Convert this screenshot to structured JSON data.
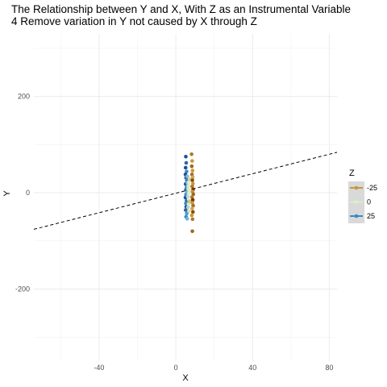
{
  "chart_data": {
    "type": "scatter",
    "title": "The Relationship between Y and X, With Z as an Instrumental Variable",
    "subtitle": "4 Remove variation in Y not caused by X through Z",
    "xlabel": "X",
    "ylabel": "Y",
    "xlim": [
      -74,
      84
    ],
    "ylim": [
      -350,
      330
    ],
    "x_ticks": [
      -40,
      0,
      40,
      80
    ],
    "y_ticks": [
      -200,
      0,
      200
    ],
    "x_tick_labels": [
      "-40",
      "0",
      "40",
      "80"
    ],
    "y_tick_labels": [
      "-200",
      "0",
      "200"
    ],
    "grid": true,
    "legend": {
      "title": "Z",
      "position": "right",
      "entries": [
        {
          "label": "-25",
          "color": "#c39a3a"
        },
        {
          "label": "0",
          "color": "#d9f0c8"
        },
        {
          "label": "25",
          "color": "#3a8ac6"
        }
      ]
    },
    "fit_line": {
      "style": "dashed",
      "color": "#000000",
      "x": [
        -74,
        84
      ],
      "y": [
        -76,
        84
      ]
    },
    "points": [
      {
        "x": 5.2,
        "y": 75,
        "color": "#1f4e9a"
      },
      {
        "x": 5.4,
        "y": 62,
        "color": "#2a66b0"
      },
      {
        "x": 5.1,
        "y": 52,
        "color": "#1f4e9a"
      },
      {
        "x": 5.6,
        "y": 44,
        "color": "#3a8ac6"
      },
      {
        "x": 5.0,
        "y": 38,
        "color": "#1f4e9a"
      },
      {
        "x": 5.3,
        "y": 31,
        "color": "#2a66b0"
      },
      {
        "x": 5.7,
        "y": 25,
        "color": "#3a8ac6"
      },
      {
        "x": 5.1,
        "y": 18,
        "color": "#1f4e9a"
      },
      {
        "x": 5.5,
        "y": 12,
        "color": "#4a9ad0"
      },
      {
        "x": 5.2,
        "y": 6,
        "color": "#2a66b0"
      },
      {
        "x": 5.8,
        "y": 1,
        "color": "#6ab4dc"
      },
      {
        "x": 5.3,
        "y": -4,
        "color": "#3a8ac6"
      },
      {
        "x": 5.0,
        "y": -10,
        "color": "#1f4e9a"
      },
      {
        "x": 5.6,
        "y": -16,
        "color": "#2a66b0"
      },
      {
        "x": 5.2,
        "y": -22,
        "color": "#3a8ac6"
      },
      {
        "x": 5.4,
        "y": -29,
        "color": "#1f4e9a"
      },
      {
        "x": 5.1,
        "y": -36,
        "color": "#2a66b0"
      },
      {
        "x": 5.7,
        "y": -43,
        "color": "#4a9ad0"
      },
      {
        "x": 5.3,
        "y": -50,
        "color": "#3a8ac6"
      },
      {
        "x": 5.9,
        "y": -54,
        "color": "#6ab4dc"
      },
      {
        "x": 6.1,
        "y": 20,
        "color": "#8ec6e0"
      },
      {
        "x": 6.2,
        "y": -8,
        "color": "#a8d8ea"
      },
      {
        "x": 6.0,
        "y": 34,
        "color": "#7ec0e0"
      },
      {
        "x": 6.3,
        "y": -30,
        "color": "#9fd2e6"
      },
      {
        "x": 6.4,
        "y": 8,
        "color": "#c8e8d0"
      },
      {
        "x": 6.6,
        "y": -2,
        "color": "#d9f0c8"
      },
      {
        "x": 6.5,
        "y": 14,
        "color": "#d4ecc4"
      },
      {
        "x": 6.7,
        "y": -14,
        "color": "#e0f2c8"
      },
      {
        "x": 6.8,
        "y": 22,
        "color": "#e6f0c0"
      },
      {
        "x": 6.6,
        "y": -24,
        "color": "#d6eec4"
      },
      {
        "x": 7.0,
        "y": 4,
        "color": "#f0e6b0"
      },
      {
        "x": 6.9,
        "y": -38,
        "color": "#e8e0a8"
      },
      {
        "x": 7.2,
        "y": 28,
        "color": "#e4d090"
      },
      {
        "x": 7.1,
        "y": -18,
        "color": "#d8c070"
      },
      {
        "x": 8.2,
        "y": 80,
        "color": "#b07a24"
      },
      {
        "x": 8.5,
        "y": 66,
        "color": "#c39a3a"
      },
      {
        "x": 8.3,
        "y": 55,
        "color": "#9a6a1e"
      },
      {
        "x": 8.7,
        "y": 46,
        "color": "#c39a3a"
      },
      {
        "x": 8.4,
        "y": 38,
        "color": "#a86e20"
      },
      {
        "x": 8.8,
        "y": 32,
        "color": "#d0a848"
      },
      {
        "x": 8.6,
        "y": 26,
        "color": "#8a4a14"
      },
      {
        "x": 8.9,
        "y": 19,
        "color": "#c39a3a"
      },
      {
        "x": 8.5,
        "y": 13,
        "color": "#b07a24"
      },
      {
        "x": 9.0,
        "y": 7,
        "color": "#7a2e0a"
      },
      {
        "x": 8.7,
        "y": 2,
        "color": "#c39a3a"
      },
      {
        "x": 9.1,
        "y": -3,
        "color": "#9a6a1e"
      },
      {
        "x": 8.4,
        "y": -9,
        "color": "#b07a24"
      },
      {
        "x": 8.8,
        "y": -15,
        "color": "#7a2e0a"
      },
      {
        "x": 8.6,
        "y": -21,
        "color": "#c39a3a"
      },
      {
        "x": 9.0,
        "y": -27,
        "color": "#a86e20"
      },
      {
        "x": 8.5,
        "y": -33,
        "color": "#d0a848"
      },
      {
        "x": 8.9,
        "y": -40,
        "color": "#8a4a14"
      },
      {
        "x": 8.3,
        "y": -47,
        "color": "#c39a3a"
      },
      {
        "x": 8.7,
        "y": -55,
        "color": "#b07a24"
      },
      {
        "x": 8.6,
        "y": -80,
        "color": "#9a6a1e"
      }
    ]
  }
}
